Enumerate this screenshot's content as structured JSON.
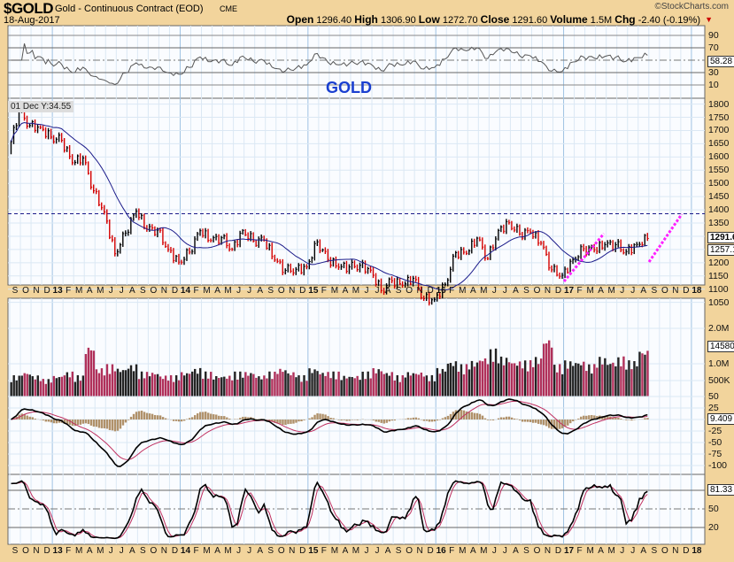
{
  "header": {
    "symbol": "$GOLD",
    "name": "Gold - Continuous Contract (EOD)",
    "exchange": "CME",
    "copyright": "©StockCharts.com",
    "date": "18-Aug-2017"
  },
  "quote": {
    "open_label": "Open",
    "open": "1296.40",
    "high_label": "High",
    "high": "1306.90",
    "low_label": "Low",
    "low": "1272.70",
    "close_label": "Close",
    "close": "1291.60",
    "volume_label": "Volume",
    "volume": "1.5M",
    "chg_label": "Chg",
    "chg": "-2.40 (-0.19%)"
  },
  "panel_title": "GOLD",
  "annotation": "01 Dec Y:34.55",
  "axes": {
    "rsi": [
      "90",
      "70",
      "50",
      "30",
      "10"
    ],
    "price": [
      "1800",
      "1750",
      "1700",
      "1650",
      "1600",
      "1550",
      "1500",
      "1450",
      "1400",
      "1350",
      "1200",
      "1150",
      "1100",
      "1050"
    ],
    "volume": [
      "2.0M",
      "1.0M",
      "500K"
    ],
    "macd": [
      "50",
      "25",
      "-25",
      "-50",
      "-75",
      "-100"
    ],
    "stoch": [
      "50",
      "20"
    ],
    "months": [
      "S",
      "O",
      "N",
      "D",
      "13",
      "F",
      "M",
      "A",
      "M",
      "J",
      "J",
      "A",
      "S",
      "O",
      "N",
      "D",
      "14",
      "F",
      "M",
      "A",
      "M",
      "J",
      "J",
      "A",
      "S",
      "O",
      "N",
      "D",
      "15",
      "F",
      "M",
      "A",
      "M",
      "J",
      "J",
      "A",
      "S",
      "O",
      "N",
      "D",
      "16",
      "F",
      "M",
      "A",
      "M",
      "J",
      "J",
      "A",
      "S",
      "O",
      "N",
      "D",
      "17",
      "F",
      "M",
      "A",
      "M",
      "J",
      "J",
      "A",
      "S",
      "O",
      "N",
      "D",
      "18"
    ]
  },
  "tags": {
    "rsi": "58.28",
    "close": "1291.6",
    "ma": "1257.1",
    "volume": "14580",
    "macd": "9.409",
    "stoch": "81.33"
  },
  "colors": {
    "up": "#000000",
    "down": "#d40000",
    "ma": "#1b1b8a",
    "trend": "#ff22ff",
    "grid": "#cfe0f0",
    "title": "#1a3fd0",
    "vol_down": "#b0305a"
  },
  "chart_data": {
    "type": "bar",
    "title": "$GOLD Gold - Continuous Contract (EOD) weekly",
    "period_start": "Sep 2012",
    "period_end": "Aug 2017",
    "monthly_close": [
      1772,
      1719,
      1712,
      1675,
      1663,
      1578,
      1596,
      1472,
      1392,
      1234,
      1312,
      1395,
      1327,
      1323,
      1250,
      1202,
      1240,
      1321,
      1284,
      1295,
      1250,
      1322,
      1282,
      1286,
      1210,
      1171,
      1175,
      1184,
      1279,
      1212,
      1183,
      1184,
      1190,
      1172,
      1095,
      1132,
      1115,
      1141,
      1064,
      1061,
      1118,
      1238,
      1235,
      1293,
      1215,
      1322,
      1351,
      1309,
      1316,
      1274,
      1173,
      1152,
      1211,
      1253,
      1249,
      1268,
      1268,
      1242,
      1269,
      1291.6
    ],
    "monthly_volume_m": [
      0.6,
      0.7,
      0.6,
      0.5,
      0.6,
      0.7,
      0.6,
      1.4,
      0.8,
      0.9,
      0.8,
      0.9,
      0.7,
      0.7,
      0.6,
      0.6,
      0.7,
      0.8,
      0.7,
      0.6,
      0.6,
      0.7,
      0.7,
      0.6,
      0.7,
      0.8,
      0.7,
      0.6,
      0.8,
      0.7,
      0.7,
      0.6,
      0.6,
      0.7,
      0.8,
      0.7,
      0.6,
      0.7,
      0.7,
      0.6,
      0.8,
      1.0,
      0.9,
      1.0,
      1.1,
      1.3,
      1.1,
      1.0,
      1.0,
      1.1,
      1.6,
      0.9,
      1.0,
      1.0,
      0.9,
      1.1,
      1.0,
      1.1,
      1.0,
      1.3
    ],
    "price_ylim": [
      1030,
      1830
    ],
    "reference_line": 1385,
    "series": [
      {
        "name": "Price"
      },
      {
        "name": "Moving Average"
      },
      {
        "name": "RSI"
      },
      {
        "name": "Volume"
      },
      {
        "name": "MACD"
      },
      {
        "name": "Stochastic"
      }
    ]
  }
}
